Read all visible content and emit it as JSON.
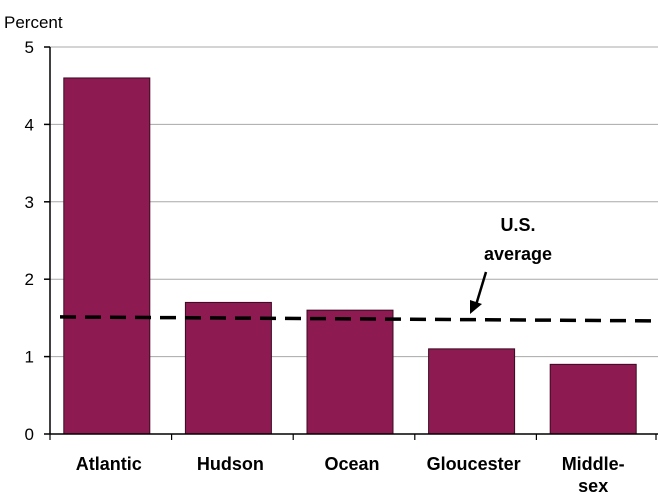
{
  "chart_data": {
    "type": "bar",
    "ylabel": "Percent",
    "ylim": [
      0,
      5
    ],
    "yticks": [
      "0",
      "1",
      "2",
      "3",
      "4",
      "5"
    ],
    "categories": [
      "Atlantic",
      "Hudson",
      "Ocean",
      "Gloucester",
      "Middle-\nsex"
    ],
    "values": [
      4.6,
      1.7,
      1.6,
      1.1,
      0.9
    ],
    "reference_line": {
      "label_line1": "U.S.",
      "label_line2": "average",
      "value": 1.5,
      "style": "dashed"
    },
    "grid": true,
    "colors": {
      "bar": "#8e1a52",
      "bar_edge": "#3a0a22",
      "grid": "#a8a8a8",
      "axis": "#000000"
    }
  }
}
